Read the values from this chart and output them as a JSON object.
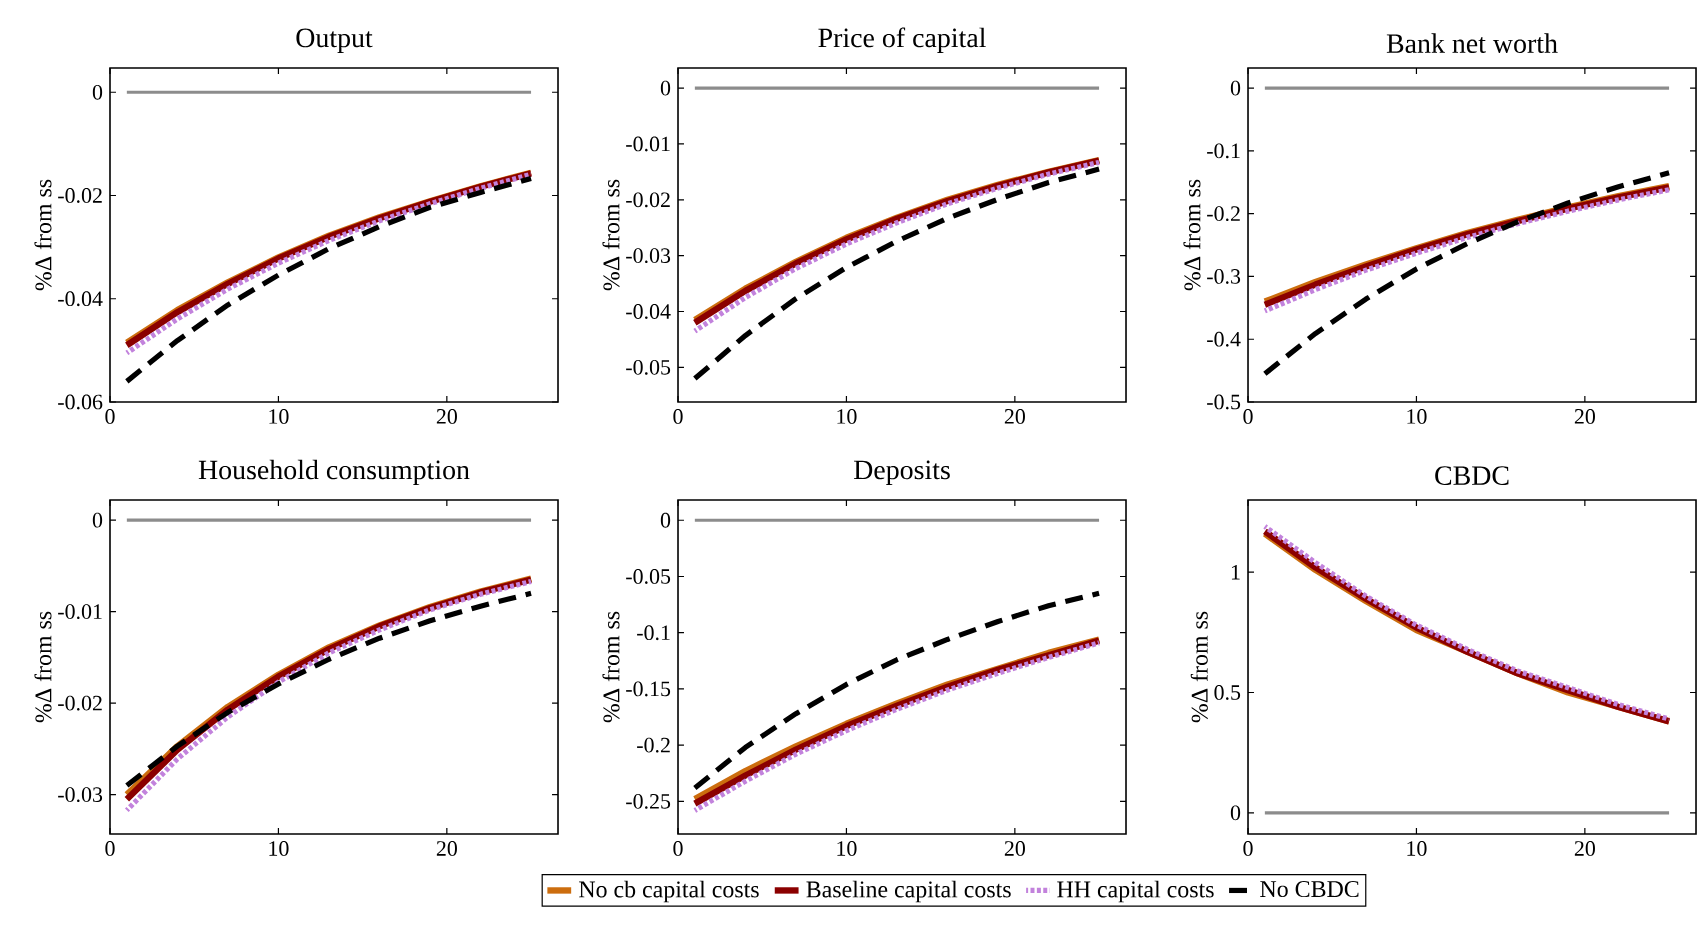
{
  "chart_data": [
    {
      "type": "line",
      "title": "Output",
      "ylabel": "%Δ from ss",
      "x": [
        1,
        4,
        7,
        10,
        13,
        16,
        19,
        22,
        25
      ],
      "xlim": [
        0,
        26.6
      ],
      "xticks": [
        0,
        10,
        20
      ],
      "ylim": [
        -0.06,
        0.0047
      ],
      "yticks": [
        -0.06,
        -0.04,
        -0.02,
        0
      ],
      "marker": "none",
      "grid": false,
      "ref_lines": [
        {
          "axis": "y",
          "value": 0,
          "color": "#8c8c8c"
        }
      ],
      "series": [
        {
          "color": "#cc6d0e",
          "line_style": "solid",
          "values": [
            -0.0485,
            -0.0422,
            -0.0368,
            -0.032,
            -0.0278,
            -0.0242,
            -0.0211,
            -0.0182,
            -0.0156
          ]
        },
        {
          "color": "#8b0000",
          "line_style": "solid",
          "values": [
            -0.049,
            -0.0426,
            -0.0371,
            -0.0322,
            -0.028,
            -0.0244,
            -0.0212,
            -0.0183,
            -0.0157
          ]
        },
        {
          "color": "#c282dc",
          "line_style": "dotted",
          "values": [
            -0.0505,
            -0.0439,
            -0.0381,
            -0.0331,
            -0.0287,
            -0.0249,
            -0.0216,
            -0.0186,
            -0.0159
          ]
        },
        {
          "color": "#000000",
          "line_style": "dashed",
          "values": [
            -0.056,
            -0.0481,
            -0.0412,
            -0.0354,
            -0.0303,
            -0.026,
            -0.0223,
            -0.0194,
            -0.0167
          ]
        }
      ]
    },
    {
      "type": "line",
      "title": "Price of capital",
      "ylabel": "%Δ from ss",
      "x": [
        1,
        4,
        7,
        10,
        13,
        16,
        19,
        22,
        25
      ],
      "xlim": [
        0,
        26.6
      ],
      "xticks": [
        0,
        10,
        20
      ],
      "ylim": [
        -0.0562,
        0.0036
      ],
      "yticks": [
        -0.05,
        -0.04,
        -0.03,
        -0.02,
        -0.01,
        0
      ],
      "marker": "none",
      "grid": false,
      "ref_lines": [
        {
          "axis": "y",
          "value": 0,
          "color": "#8c8c8c"
        }
      ],
      "series": [
        {
          "color": "#cc6d0e",
          "line_style": "solid",
          "values": [
            -0.0415,
            -0.0359,
            -0.0311,
            -0.0268,
            -0.0232,
            -0.02,
            -0.0173,
            -0.015,
            -0.0129
          ]
        },
        {
          "color": "#8b0000",
          "line_style": "solid",
          "values": [
            -0.042,
            -0.0363,
            -0.0314,
            -0.0271,
            -0.0234,
            -0.0202,
            -0.0175,
            -0.0151,
            -0.013
          ]
        },
        {
          "color": "#c282dc",
          "line_style": "dotted",
          "values": [
            -0.0435,
            -0.0375,
            -0.0323,
            -0.0279,
            -0.0241,
            -0.0207,
            -0.0179,
            -0.0154,
            -0.0133
          ]
        },
        {
          "color": "#000000",
          "line_style": "dashed",
          "values": [
            -0.052,
            -0.0443,
            -0.0377,
            -0.0321,
            -0.0274,
            -0.0233,
            -0.0199,
            -0.0169,
            -0.0145
          ]
        }
      ]
    },
    {
      "type": "line",
      "title": "Bank net worth",
      "ylabel": "%Δ from ss",
      "x": [
        1,
        4,
        7,
        10,
        13,
        16,
        19,
        22,
        25
      ],
      "xlim": [
        0,
        26.6
      ],
      "xticks": [
        0,
        10,
        20
      ],
      "ylim": [
        -0.5,
        0.032
      ],
      "yticks": [
        -0.5,
        -0.4,
        -0.3,
        -0.2,
        -0.1,
        0
      ],
      "marker": "none",
      "grid": false,
      "ref_lines": [
        {
          "axis": "y",
          "value": 0,
          "color": "#8c8c8c"
        }
      ],
      "series": [
        {
          "color": "#cc6d0e",
          "line_style": "solid",
          "values": [
            -0.34,
            -0.309,
            -0.281,
            -0.255,
            -0.231,
            -0.21,
            -0.19,
            -0.172,
            -0.156
          ]
        },
        {
          "color": "#8b0000",
          "line_style": "solid",
          "values": [
            -0.345,
            -0.313,
            -0.284,
            -0.257,
            -0.233,
            -0.212,
            -0.192,
            -0.174,
            -0.158
          ]
        },
        {
          "color": "#c282dc",
          "line_style": "dotted",
          "values": [
            -0.355,
            -0.321,
            -0.29,
            -0.263,
            -0.238,
            -0.216,
            -0.196,
            -0.178,
            -0.162
          ]
        },
        {
          "color": "#000000",
          "line_style": "dashed",
          "values": [
            -0.455,
            -0.391,
            -0.336,
            -0.288,
            -0.248,
            -0.213,
            -0.183,
            -0.157,
            -0.135
          ]
        }
      ]
    },
    {
      "type": "line",
      "title": "Household consumption",
      "ylabel": "%Δ from ss",
      "x": [
        1,
        4,
        7,
        10,
        13,
        16,
        19,
        22,
        25
      ],
      "xlim": [
        0,
        26.6
      ],
      "xticks": [
        0,
        10,
        20
      ],
      "ylim": [
        -0.0343,
        0.0022
      ],
      "yticks": [
        -0.03,
        -0.02,
        -0.01,
        0
      ],
      "marker": "none",
      "grid": false,
      "ref_lines": [
        {
          "axis": "y",
          "value": 0,
          "color": "#8c8c8c"
        }
      ],
      "series": [
        {
          "color": "#cc6d0e",
          "line_style": "solid",
          "values": [
            -0.03,
            -0.0247,
            -0.0204,
            -0.0169,
            -0.0139,
            -0.0115,
            -0.0095,
            -0.0078,
            -0.0064
          ]
        },
        {
          "color": "#8b0000",
          "line_style": "solid",
          "values": [
            -0.0305,
            -0.0251,
            -0.0207,
            -0.0171,
            -0.0141,
            -0.0116,
            -0.0096,
            -0.0079,
            -0.0065
          ]
        },
        {
          "color": "#c282dc",
          "line_style": "dotted",
          "values": [
            -0.0317,
            -0.0261,
            -0.0215,
            -0.0177,
            -0.0145,
            -0.012,
            -0.0098,
            -0.0081,
            -0.0067
          ]
        },
        {
          "color": "#000000",
          "line_style": "dashed",
          "values": [
            -0.029,
            -0.0247,
            -0.021,
            -0.0179,
            -0.0152,
            -0.0129,
            -0.011,
            -0.0094,
            -0.008
          ]
        }
      ]
    },
    {
      "type": "line",
      "title": "Deposits",
      "ylabel": "%Δ from ss",
      "x": [
        1,
        4,
        7,
        10,
        13,
        16,
        19,
        22,
        25
      ],
      "xlim": [
        0,
        26.6
      ],
      "xticks": [
        0,
        10,
        20
      ],
      "ylim": [
        -0.279,
        0.018
      ],
      "yticks": [
        -0.25,
        -0.2,
        -0.15,
        -0.1,
        -0.05,
        0
      ],
      "marker": "none",
      "grid": false,
      "legend": "bottom",
      "ref_lines": [
        {
          "axis": "y",
          "value": 0,
          "color": "#8c8c8c"
        }
      ],
      "series": [
        {
          "name": "No cb capital costs",
          "color": "#cc6d0e",
          "line_style": "solid",
          "values": [
            -0.248,
            -0.223,
            -0.201,
            -0.181,
            -0.163,
            -0.146,
            -0.132,
            -0.118,
            -0.106
          ]
        },
        {
          "name": "Baseline capital costs",
          "color": "#8b0000",
          "line_style": "solid",
          "values": [
            -0.252,
            -0.227,
            -0.204,
            -0.183,
            -0.165,
            -0.148,
            -0.133,
            -0.12,
            -0.107
          ]
        },
        {
          "name": "HH capital costs",
          "color": "#c282dc",
          "line_style": "dotted",
          "values": [
            -0.258,
            -0.232,
            -0.208,
            -0.187,
            -0.168,
            -0.151,
            -0.136,
            -0.122,
            -0.109
          ]
        },
        {
          "name": "No CBDC",
          "color": "#000000",
          "line_style": "dashed",
          "values": [
            -0.238,
            -0.202,
            -0.172,
            -0.146,
            -0.124,
            -0.106,
            -0.09,
            -0.076,
            -0.065
          ]
        }
      ]
    },
    {
      "type": "line",
      "title": "CBDC",
      "ylabel": "%Δ from ss",
      "x": [
        1,
        4,
        7,
        10,
        13,
        16,
        19,
        22,
        25
      ],
      "xlim": [
        0,
        26.6
      ],
      "xticks": [
        0,
        10,
        20
      ],
      "ylim": [
        -0.088,
        1.3
      ],
      "yticks": [
        0,
        0.5,
        1
      ],
      "marker": "none",
      "grid": false,
      "ref_lines": [
        {
          "axis": "y",
          "value": 0,
          "color": "#8c8c8c"
        }
      ],
      "series": [
        {
          "color": "#cc6d0e",
          "line_style": "solid",
          "values": [
            1.16,
            1.01,
            0.88,
            0.76,
            0.67,
            0.58,
            0.5,
            0.44,
            0.38
          ]
        },
        {
          "color": "#8b0000",
          "line_style": "solid",
          "values": [
            1.17,
            1.02,
            0.89,
            0.77,
            0.67,
            0.58,
            0.51,
            0.44,
            0.38
          ]
        },
        {
          "color": "#c282dc",
          "line_style": "dotted",
          "values": [
            1.19,
            1.04,
            0.9,
            0.78,
            0.68,
            0.59,
            0.52,
            0.45,
            0.39
          ]
        }
      ]
    }
  ]
}
